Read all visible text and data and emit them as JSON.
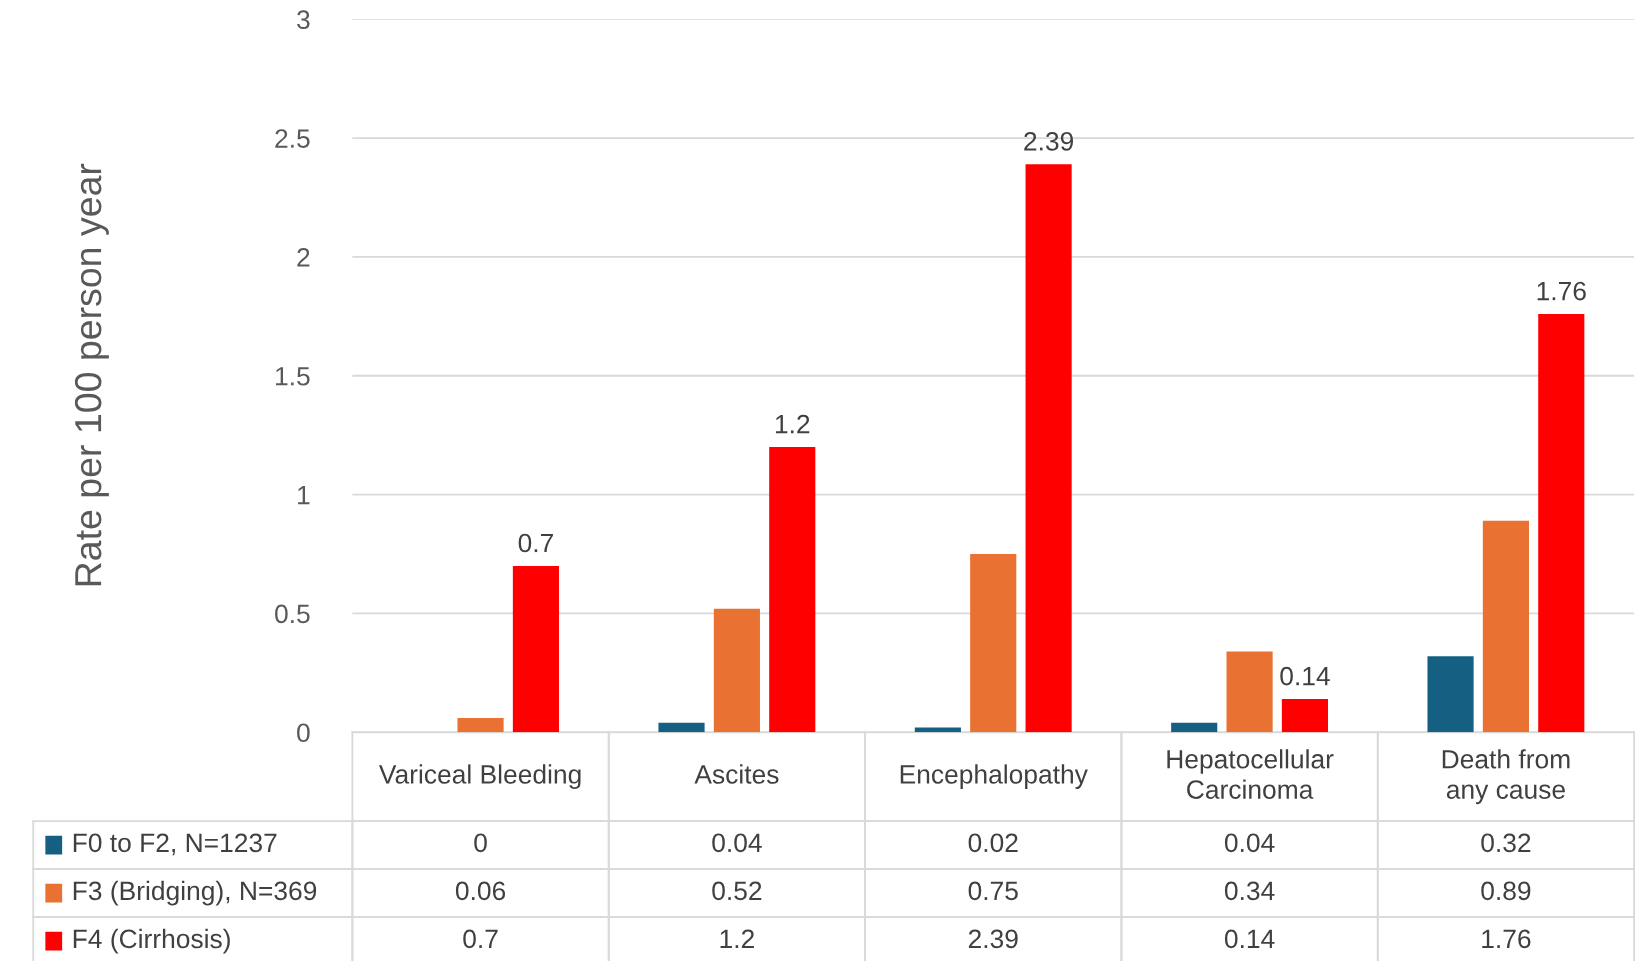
{
  "chart_data": {
    "type": "bar",
    "ylabel": "Rate per 100 person year",
    "categories": [
      "Variceal Bleeding",
      "Ascites",
      "Encephalopathy",
      "Hepatocellular Carcinoma",
      "Death from any cause"
    ],
    "series": [
      {
        "name": "F0 to F2, N=1237",
        "color": "#156082",
        "values": [
          0,
          0.04,
          0.02,
          0.04,
          0.32
        ]
      },
      {
        "name": "F3 (Bridging), N=369",
        "color": "#e97132",
        "values": [
          0.06,
          0.52,
          0.75,
          0.34,
          0.89
        ]
      },
      {
        "name": "F4 (Cirrhosis)",
        "color": "#ff0000",
        "values": [
          0.7,
          1.2,
          2.39,
          0.14,
          1.76
        ],
        "value_labels": [
          "0.7",
          "1.2",
          "2.39",
          "0.14",
          "1.76"
        ]
      }
    ],
    "ylim": [
      0,
      3
    ],
    "yticks": [
      0,
      0.5,
      1,
      1.5,
      2,
      2.5,
      3
    ],
    "grid": "y",
    "data_labels": true,
    "legend": "bottom left"
  }
}
